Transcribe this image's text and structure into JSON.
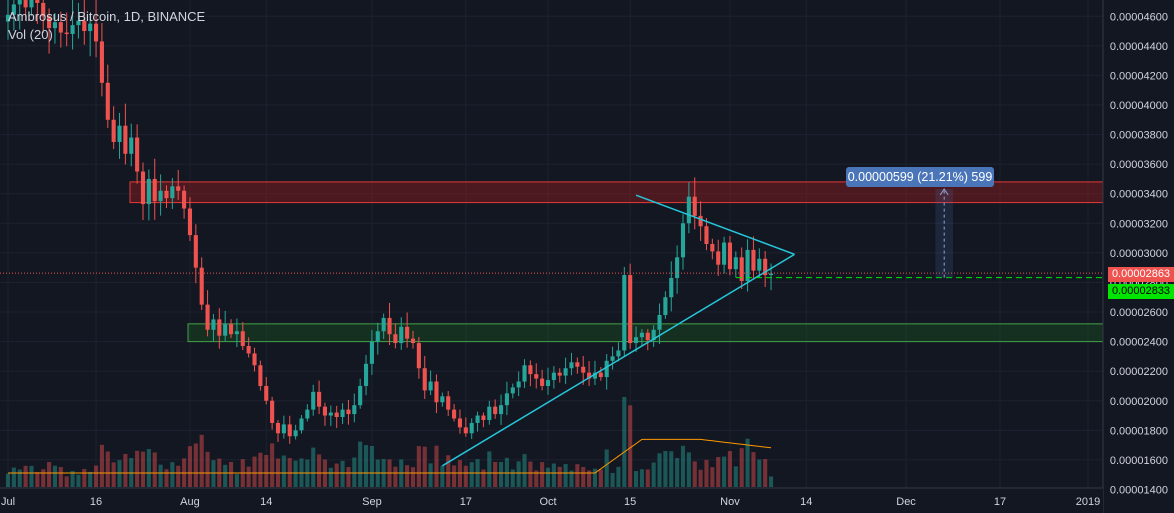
{
  "legend": {
    "symbol": "Ambrosus / Bitcoin, 1D, BINANCE",
    "volume": "Vol (20)"
  },
  "colors": {
    "background": "#131722",
    "up": "#26a69a",
    "down": "#ef5350",
    "trendline": "#26c6da",
    "resistance_zone": "#b71c1c",
    "support_zone": "#1b5e20",
    "volume_ma": "#ff9800",
    "last_price_tag": "#ef5350",
    "target_tag": "#00e600"
  },
  "price_tags": {
    "last": "0.00002863",
    "target": "0.00002833"
  },
  "measure_label": "0.00000599 (21.21%) 599",
  "chart_data": {
    "type": "candlestick",
    "title": "Ambrosus / Bitcoin, 1D, BINANCE",
    "y_axis": {
      "min": 1.41e-05,
      "max": 4.71e-05,
      "ticks": [
        "0.00004600",
        "0.00004400",
        "0.00004200",
        "0.00004000",
        "0.00003800",
        "0.00003600",
        "0.00003400",
        "0.00003200",
        "0.00003000",
        "0.00002800",
        "0.00002600",
        "0.00002400",
        "0.00002200",
        "0.00002000",
        "0.00001800",
        "0.00001600",
        "0.00001400"
      ],
      "position": "right"
    },
    "x_axis": {
      "start": "2018-07-01",
      "end": "2019-01-01",
      "tick_labels": [
        {
          "label": "Jul",
          "date": "2018-07-01"
        },
        {
          "label": "16",
          "date": "2018-07-16"
        },
        {
          "label": "Aug",
          "date": "2018-08-01"
        },
        {
          "label": "14",
          "date": "2018-08-14"
        },
        {
          "label": "Sep",
          "date": "2018-09-01"
        },
        {
          "label": "17",
          "date": "2018-09-17"
        },
        {
          "label": "Oct",
          "date": "2018-10-01"
        },
        {
          "label": "15",
          "date": "2018-10-15"
        },
        {
          "label": "Nov",
          "date": "2018-11-01"
        },
        {
          "label": "14",
          "date": "2018-11-14"
        },
        {
          "label": "Dec",
          "date": "2018-12-01"
        },
        {
          "label": "17",
          "date": "2018-12-17"
        },
        {
          "label": "2019",
          "date": "2019-01-01"
        }
      ]
    },
    "grid": true,
    "closes": [
      4.61e-05,
      4.68e-05,
      4.72e-05,
      4.66e-05,
      4.75e-05,
      4.69e-05,
      4.6e-05,
      4.52e-05,
      4.56e-05,
      4.49e-05,
      4.48e-05,
      4.54e-05,
      4.57e-05,
      4.5e-05,
      4.55e-05,
      4.43e-05,
      4.15e-05,
      3.9e-05,
      3.75e-05,
      3.86e-05,
      3.67e-05,
      3.78e-05,
      3.55e-05,
      3.33e-05,
      3.5e-05,
      3.35e-05,
      3.42e-05,
      3.37e-05,
      3.45e-05,
      3.42e-05,
      3.3e-05,
      3.12e-05,
      2.9e-05,
      2.65e-05,
      2.48e-05,
      2.55e-05,
      2.44e-05,
      2.52e-05,
      2.45e-05,
      2.47e-05,
      2.37e-05,
      2.32e-05,
      2.24e-05,
      2.1e-05,
      2e-05,
      1.85e-05,
      1.78e-05,
      1.84e-05,
      1.76e-05,
      1.8e-05,
      1.88e-05,
      1.94e-05,
      2.06e-05,
      1.96e-05,
      1.9e-05,
      1.92e-05,
      1.89e-05,
      1.94e-05,
      1.91e-05,
      1.97e-05,
      2.1e-05,
      2.25e-05,
      2.4e-05,
      2.47e-05,
      2.56e-05,
      2.45e-05,
      2.39e-05,
      2.5e-05,
      2.42e-05,
      2.39e-05,
      2.22e-05,
      2.07e-05,
      2.13e-05,
      1.99e-05,
      2.03e-05,
      1.94e-05,
      1.88e-05,
      1.82e-05,
      1.78e-05,
      1.85e-05,
      1.9e-05,
      1.87e-05,
      1.96e-05,
      1.91e-05,
      1.97e-05,
      2.05e-05,
      2.09e-05,
      2.13e-05,
      2.24e-05,
      2.18e-05,
      2.15e-05,
      2.1e-05,
      2.14e-05,
      2.19e-05,
      2.17e-05,
      2.22e-05,
      2.26e-05,
      2.23e-05,
      2.19e-05,
      2.15e-05,
      2.19e-05,
      2.16e-05,
      2.27e-05,
      2.3e-05,
      2.34e-05,
      2.85e-05,
      2.39e-05,
      2.43e-05,
      2.46e-05,
      2.41e-05,
      2.48e-05,
      2.58e-05,
      2.7e-05,
      2.83e-05,
      2.97e-05,
      3.2e-05,
      3.38e-05,
      3.25e-05,
      3.18e-05,
      3.06e-05,
      3.01e-05,
      2.92e-05,
      3.07e-05,
      2.89e-05,
      2.97e-05,
      2.81e-05,
      3.02e-05,
      2.88e-05,
      2.96e-05,
      2.85e-05,
      2.86e-05
    ],
    "volume_ma": [
      0.02,
      0.02,
      0.02,
      0.02,
      0.02,
      0.02,
      0.02,
      0.02,
      0.02,
      0.02,
      0.02,
      0.02,
      0.02,
      0.02,
      0.02,
      0.02,
      0.02,
      0.02,
      0.02,
      0.02,
      0.02,
      0.02,
      0.02,
      0.02,
      0.02,
      0.02,
      0.02,
      0.02,
      0.02,
      0.02,
      0.02,
      0.02,
      0.02,
      0.02,
      0.02,
      0.02,
      0.02,
      0.02,
      0.02,
      0.02,
      0.02,
      0.02,
      0.02,
      0.02,
      0.02,
      0.02,
      0.02,
      0.02,
      0.02,
      0.02,
      0.02,
      0.02,
      0.02,
      0.02,
      0.02,
      0.02,
      0.02,
      0.02,
      0.02,
      0.02,
      0.02,
      0.02,
      0.02,
      0.02,
      0.02,
      0.02,
      0.02,
      0.02,
      0.02,
      0.02,
      0.02,
      0.02,
      0.02,
      0.02,
      0.02,
      0.02,
      0.02,
      0.02,
      0.02,
      0.02,
      0.02,
      0.02,
      0.02,
      0.02,
      0.02,
      0.02,
      0.02,
      0.02,
      0.02,
      0.02,
      0.02,
      0.02,
      0.02,
      0.02,
      0.02,
      0.02,
      0.02,
      0.02,
      0.02,
      0.02,
      0.02,
      0.02,
      0.02,
      0.02,
      0.02,
      0.02,
      0.02,
      0.02,
      0.02,
      0.02,
      0.02,
      0.02,
      0.02,
      0.02,
      0.02,
      0.02,
      0.02,
      0.02,
      0.02,
      0.02,
      0.02,
      0.02,
      0.02,
      0.02,
      0.02,
      0.02,
      0.02,
      0.02,
      0.02,
      0.02,
      0.02
    ],
    "zones": [
      {
        "name": "resistance",
        "y_low": 3.34e-05,
        "y_high": 3.48e-05
      },
      {
        "name": "support",
        "y_low": 2.4e-05,
        "y_high": 2.52e-05
      }
    ],
    "trendlines": [
      {
        "from": {
          "date": "2018-09-13",
          "price": 1.56e-05
        },
        "to": {
          "date": "2018-11-12",
          "price": 2.99e-05
        }
      },
      {
        "from": {
          "date": "2018-10-16",
          "price": 3.39e-05
        },
        "to": {
          "date": "2018-11-12",
          "price": 2.99e-05
        }
      }
    ],
    "hlines": [
      {
        "name": "last_price",
        "price": 2.863e-05,
        "style": "dotted"
      },
      {
        "name": "target_price",
        "price": 2.833e-05,
        "style": "dashed"
      }
    ],
    "measure": {
      "from_date": "2018-12-06",
      "to_date": "2018-12-09",
      "price_low": 2.833e-05,
      "price_high": 3.432e-05
    }
  }
}
